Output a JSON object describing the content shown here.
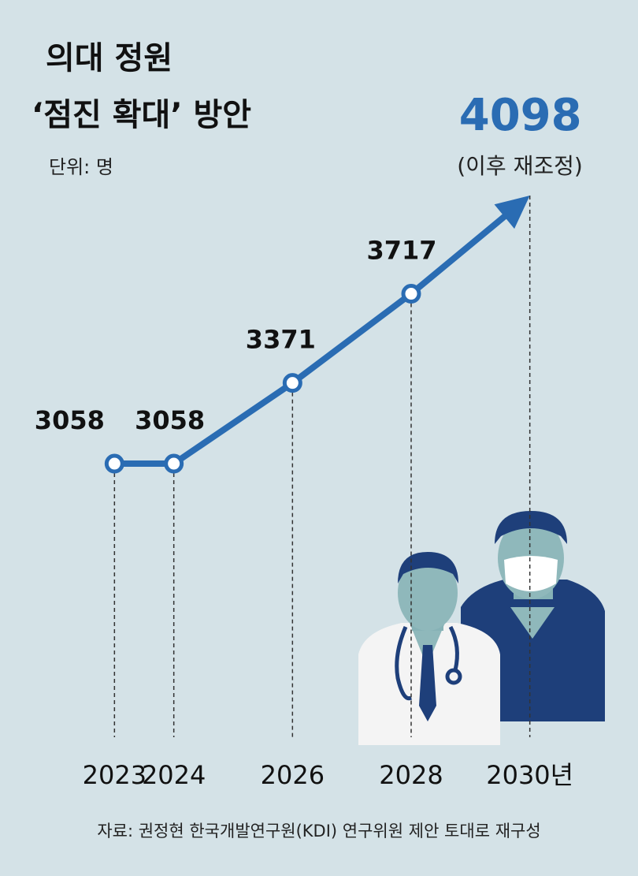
{
  "chart_data": {
    "type": "line",
    "title": [
      "의대 정원",
      "‘점진 확대’ 방안"
    ],
    "unit": "단위: 명",
    "x": [
      2023,
      2024,
      2026,
      2028,
      2030
    ],
    "series": [
      {
        "color": "#2a6cb3",
        "values": [
          3058,
          3058,
          3371,
          3717,
          4098
        ]
      }
    ],
    "xlim": [
      2022,
      2031
    ],
    "xticks": [
      2023,
      2024,
      2026,
      2028,
      {
        "value": 2030,
        "label": "2030년"
      }
    ],
    "ylim": [
      2800,
      4200
    ],
    "annotation": "(이후 재조정)",
    "source": "자료: 권정현 한국개발연구원(KDI) 연구위원 제안 토대로 재구성"
  }
}
